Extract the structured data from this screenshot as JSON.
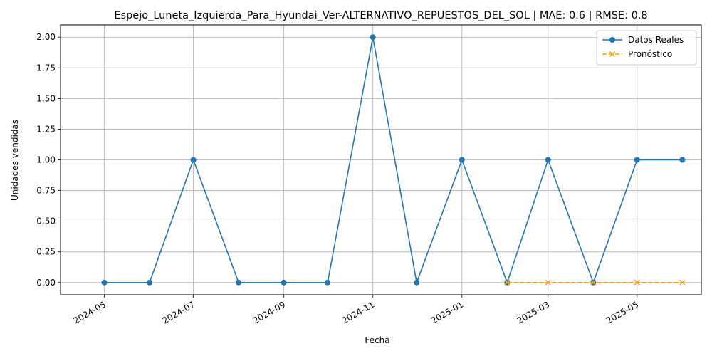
{
  "chart_data": {
    "type": "line",
    "title": "Espejo_Luneta_Izquierda_Para_Hyundai_Ver-ALTERNATIVO_REPUESTOS_DEL_SOL | MAE: 0.6 | RMSE: 0.8",
    "xlabel": "Fecha",
    "ylabel": "Unidades vendidas",
    "ylim": [
      -0.1,
      2.1
    ],
    "xlim": [
      "2024-04-01",
      "2025-06-14"
    ],
    "grid": true,
    "legend_position": "top-right",
    "x_ticks": [
      "2024-05",
      "2024-07",
      "2024-09",
      "2024-11",
      "2025-01",
      "2025-03",
      "2025-05"
    ],
    "y_ticks": [
      "0.00",
      "0.25",
      "0.50",
      "0.75",
      "1.00",
      "1.25",
      "1.50",
      "1.75",
      "2.00"
    ],
    "series": [
      {
        "name": "Datos Reales",
        "color": "#1f77b4",
        "style": "solid",
        "marker": "circle",
        "x": [
          "2024-05-01",
          "2024-06-01",
          "2024-07-01",
          "2024-08-01",
          "2024-09-01",
          "2024-10-01",
          "2024-11-01",
          "2024-12-01",
          "2025-01-01",
          "2025-02-01",
          "2025-03-01",
          "2025-04-01",
          "2025-05-01",
          "2025-06-01"
        ],
        "values": [
          0,
          0,
          1,
          0,
          0,
          0,
          2,
          0,
          1,
          0,
          1,
          0,
          1,
          1
        ]
      },
      {
        "name": "Pronóstico",
        "color": "#ffa500",
        "style": "dashed",
        "marker": "x",
        "x": [
          "2025-02-01",
          "2025-03-01",
          "2025-04-01",
          "2025-05-01",
          "2025-06-01"
        ],
        "values": [
          0,
          0,
          0,
          0,
          0
        ]
      }
    ]
  }
}
